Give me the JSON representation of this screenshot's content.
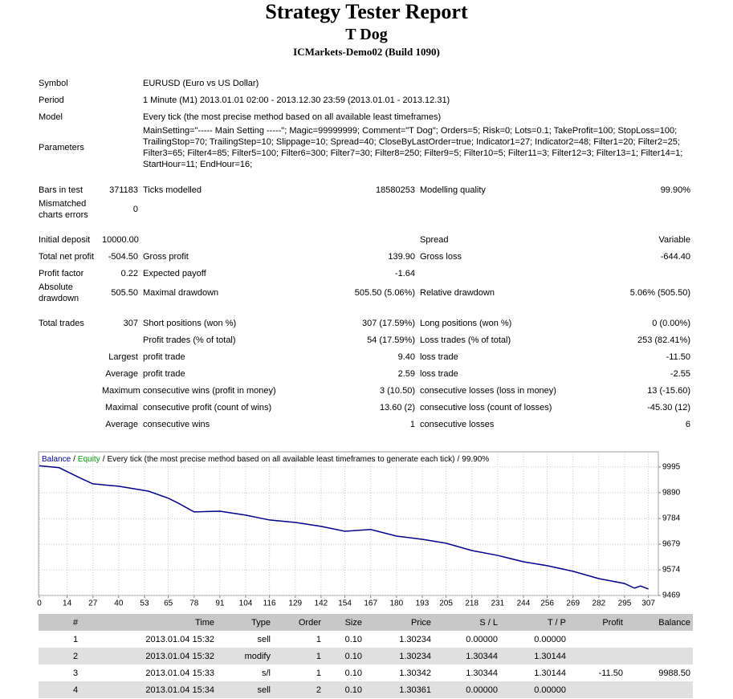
{
  "header": {
    "title": "Strategy Tester Report",
    "subtitle": "T Dog",
    "server": "ICMarkets-Demo02 (Build 1090)"
  },
  "info": [
    [
      "Symbol",
      "EURUSD (Euro vs US Dollar)"
    ],
    [
      "Period",
      "1 Minute (M1) 2013.01.01 02:00 - 2013.12.30 23:59 (2013.01.01 - 2013.12.31)"
    ],
    [
      "Model",
      "Every tick (the most precise method based on all available least timeframes)"
    ],
    [
      "Parameters",
      "MainSetting=\"----- Main Setting -----\"; Magic=99999999; Comment=\"T Dog\"; Orders=5; Risk=0; Lots=0.1; TakeProfit=100; StopLoss=100; TrailingStop=70; TrailingStep=10; Slippage=10; Spread=40; CloseByLastOrder=true; Indicator1=27; Indicator2=48; Filter1=20; Filter2=25; Filter3=65; Filter4=85; Filter5=100; Filter6=300; Filter7=30; Filter8=250; Filter9=5; Filter10=5; Filter11=3; Filter12=3; Filter13=1; Filter14=1; StartHour=11; EndHour=16;"
    ]
  ],
  "stats": [
    [
      [
        "Bars in test",
        "371183",
        "Ticks modelled",
        "18580253",
        "Modelling quality",
        "99.90%"
      ],
      [
        "Mismatched charts errors",
        "0",
        null,
        null,
        null,
        null
      ]
    ],
    [
      [
        "Initial deposit",
        "10000.00",
        null,
        null,
        "Spread",
        "Variable"
      ],
      [
        "Total net profit",
        "-504.50",
        "Gross profit",
        "139.90",
        "Gross loss",
        "-644.40"
      ],
      [
        "Profit factor",
        "0.22",
        "Expected payoff",
        "-1.64",
        null,
        null
      ],
      [
        "Absolute drawdown",
        "505.50",
        "Maximal drawdown",
        "505.50 (5.06%)",
        "Relative drawdown",
        "5.06% (505.50)"
      ]
    ],
    [
      [
        "Total trades",
        "307",
        "Short positions (won %)",
        "307 (17.59%)",
        "Long positions (won %)",
        "0 (0.00%)"
      ],
      [
        null,
        null,
        "Profit trades (% of total)",
        "54 (17.59%)",
        "Loss trades (% of total)",
        "253 (82.41%)"
      ],
      [
        null,
        "Largest",
        "profit trade",
        "9.40",
        "loss trade",
        "-11.50"
      ],
      [
        null,
        "Average",
        "profit trade",
        "2.59",
        "loss trade",
        "-2.55"
      ],
      [
        null,
        "Maximum",
        "consecutive wins (profit in money)",
        "3 (10.50)",
        "consecutive losses (loss in money)",
        "13 (-15.60)"
      ],
      [
        null,
        "Maximal",
        "consecutive profit (count of wins)",
        "13.60 (2)",
        "consecutive loss (count of losses)",
        "-45.30 (12)"
      ],
      [
        null,
        "Average",
        "consecutive wins",
        "1",
        "consecutive losses",
        "6"
      ]
    ]
  ],
  "chart_data": {
    "type": "line",
    "legend": {
      "balance": "Balance",
      "balance_color": "#0000a0",
      "equity": "Equity",
      "equity_color": "#00a000",
      "separator": "/",
      "caption": "Every tick (the most precise method based on all available least timeframes to generate each tick)",
      "quality": "99.90%"
    },
    "x": [
      0,
      10,
      20,
      27,
      40,
      55,
      65,
      70,
      78,
      91,
      104,
      116,
      129,
      142,
      154,
      167,
      180,
      193,
      205,
      218,
      231,
      244,
      256,
      269,
      282,
      295,
      300,
      303,
      307
    ],
    "series": [
      {
        "name": "Balance",
        "color": "#00008b",
        "values": [
          10000,
          9992,
          9952,
          9926,
          9916,
          9896,
          9867,
          9847,
          9811,
          9814,
          9798,
          9778,
          9768,
          9752,
          9732,
          9739,
          9712,
          9699,
          9683,
          9653,
          9633,
          9607,
          9591,
          9568,
          9538,
          9518,
          9499,
          9508,
          9495.5
        ]
      }
    ],
    "xlim": [
      0,
      312
    ],
    "ylim": [
      9469,
      10057
    ],
    "xticks": [
      0,
      14,
      27,
      40,
      53,
      65,
      78,
      91,
      104,
      116,
      129,
      142,
      154,
      167,
      180,
      193,
      205,
      218,
      231,
      244,
      256,
      269,
      282,
      295,
      307
    ],
    "yticks": [
      9469,
      9574,
      9679,
      9784,
      9890,
      9995
    ],
    "grid": true
  },
  "trades": {
    "headers": [
      "#",
      "Time",
      "Type",
      "Order",
      "Size",
      "Price",
      "S / L",
      "T / P",
      "Profit",
      "Balance"
    ],
    "rows": [
      [
        "1",
        "2013.01.04 15:32",
        "sell",
        "1",
        "0.10",
        "1.30234",
        "0.00000",
        "0.00000",
        null,
        null
      ],
      [
        "2",
        "2013.01.04 15:32",
        "modify",
        "1",
        "0.10",
        "1.30234",
        "1.30344",
        "1.30144",
        null,
        null
      ],
      [
        "3",
        "2013.01.04 15:33",
        "s/l",
        "1",
        "0.10",
        "1.30342",
        "1.30344",
        "1.30144",
        "-11.50",
        "9988.50"
      ],
      [
        "4",
        "2013.01.04 15:34",
        "sell",
        "2",
        "0.10",
        "1.30361",
        "0.00000",
        "0.00000",
        null,
        null
      ]
    ]
  }
}
